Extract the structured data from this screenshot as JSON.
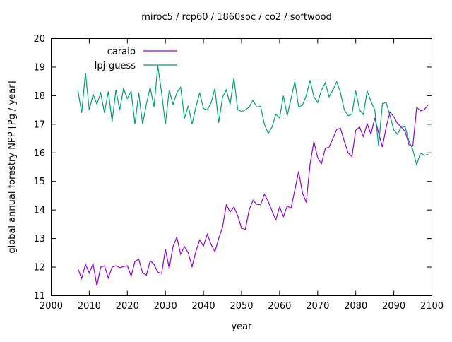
{
  "window": {
    "background": "#ffffff",
    "text_color": "#000000",
    "axis_color": "#000000"
  },
  "chart_data": {
    "type": "line",
    "title": "miroc5 / rcp60 / 1860soc / co2 / softwood",
    "xlabel": "year",
    "ylabel": "global annual forestry NPP [Pg / year]",
    "xlim": [
      2000,
      2100
    ],
    "ylim": [
      11,
      20
    ],
    "x_ticks": [
      2000,
      2010,
      2020,
      2030,
      2040,
      2050,
      2060,
      2070,
      2080,
      2090,
      2100
    ],
    "y_ticks": [
      11,
      12,
      13,
      14,
      15,
      16,
      17,
      18,
      19,
      20
    ],
    "grid": false,
    "legend_position": "top-left-inside",
    "x": [
      2007,
      2008,
      2009,
      2010,
      2011,
      2012,
      2013,
      2014,
      2015,
      2016,
      2017,
      2018,
      2019,
      2020,
      2021,
      2022,
      2023,
      2024,
      2025,
      2026,
      2027,
      2028,
      2029,
      2030,
      2031,
      2032,
      2033,
      2034,
      2035,
      2036,
      2037,
      2038,
      2039,
      2040,
      2041,
      2042,
      2043,
      2044,
      2045,
      2046,
      2047,
      2048,
      2049,
      2050,
      2051,
      2052,
      2053,
      2054,
      2055,
      2056,
      2057,
      2058,
      2059,
      2060,
      2061,
      2062,
      2063,
      2064,
      2065,
      2066,
      2067,
      2068,
      2069,
      2070,
      2071,
      2072,
      2073,
      2074,
      2075,
      2076,
      2077,
      2078,
      2079,
      2080,
      2081,
      2082,
      2083,
      2084,
      2085,
      2086,
      2087,
      2088,
      2089,
      2090,
      2091,
      2092,
      2093,
      2094,
      2095,
      2096,
      2097,
      2098,
      2099
    ],
    "series": [
      {
        "name": "caraib",
        "color": "#9400d3",
        "values": [
          11.95,
          11.6,
          12.1,
          11.8,
          12.12,
          11.35,
          12.0,
          12.05,
          11.62,
          12.0,
          12.05,
          11.98,
          12.02,
          12.05,
          11.68,
          12.2,
          12.28,
          11.8,
          11.72,
          12.22,
          12.1,
          11.82,
          11.78,
          12.62,
          11.96,
          12.72,
          13.05,
          12.45,
          12.72,
          12.5,
          12.02,
          12.55,
          12.95,
          12.74,
          13.15,
          12.8,
          12.54,
          13.0,
          13.4,
          14.18,
          13.93,
          14.1,
          13.8,
          13.36,
          13.32,
          14.0,
          14.34,
          14.2,
          14.18,
          14.55,
          14.3,
          13.97,
          13.65,
          14.1,
          13.77,
          14.14,
          14.06,
          14.7,
          15.35,
          14.6,
          14.26,
          15.6,
          16.4,
          15.83,
          15.62,
          16.16,
          16.2,
          16.5,
          16.82,
          16.86,
          16.4,
          16.0,
          15.87,
          16.79,
          16.9,
          16.57,
          17.02,
          16.65,
          17.22,
          16.7,
          16.2,
          16.9,
          17.43,
          17.26,
          17.02,
          16.9,
          16.73,
          16.28,
          16.24,
          17.59,
          17.47,
          17.51,
          17.68
        ]
      },
      {
        "name": "lpj-guess",
        "color": "#009e73",
        "values": [
          18.2,
          17.4,
          18.8,
          17.5,
          18.05,
          17.7,
          18.1,
          17.4,
          18.15,
          17.1,
          18.2,
          17.5,
          18.25,
          17.9,
          18.15,
          17.0,
          18.1,
          17.0,
          17.7,
          18.3,
          17.6,
          19.05,
          18.1,
          17.0,
          18.2,
          17.7,
          18.1,
          18.3,
          17.2,
          17.65,
          17.0,
          17.6,
          18.1,
          17.55,
          17.5,
          17.75,
          18.25,
          17.05,
          17.95,
          18.2,
          17.7,
          18.62,
          17.5,
          17.45,
          17.5,
          17.6,
          17.84,
          17.6,
          17.63,
          17.0,
          16.68,
          16.9,
          17.35,
          17.22,
          18.0,
          17.3,
          17.9,
          18.5,
          17.6,
          17.67,
          18.0,
          18.54,
          17.96,
          17.76,
          18.2,
          18.45,
          17.96,
          18.2,
          18.49,
          18.1,
          17.5,
          17.3,
          17.35,
          18.17,
          17.5,
          17.34,
          18.17,
          17.8,
          17.5,
          16.24,
          17.72,
          17.76,
          17.3,
          16.8,
          16.65,
          16.94,
          16.9,
          16.4,
          16.11,
          15.58,
          15.99,
          15.91,
          15.95
        ]
      }
    ]
  }
}
